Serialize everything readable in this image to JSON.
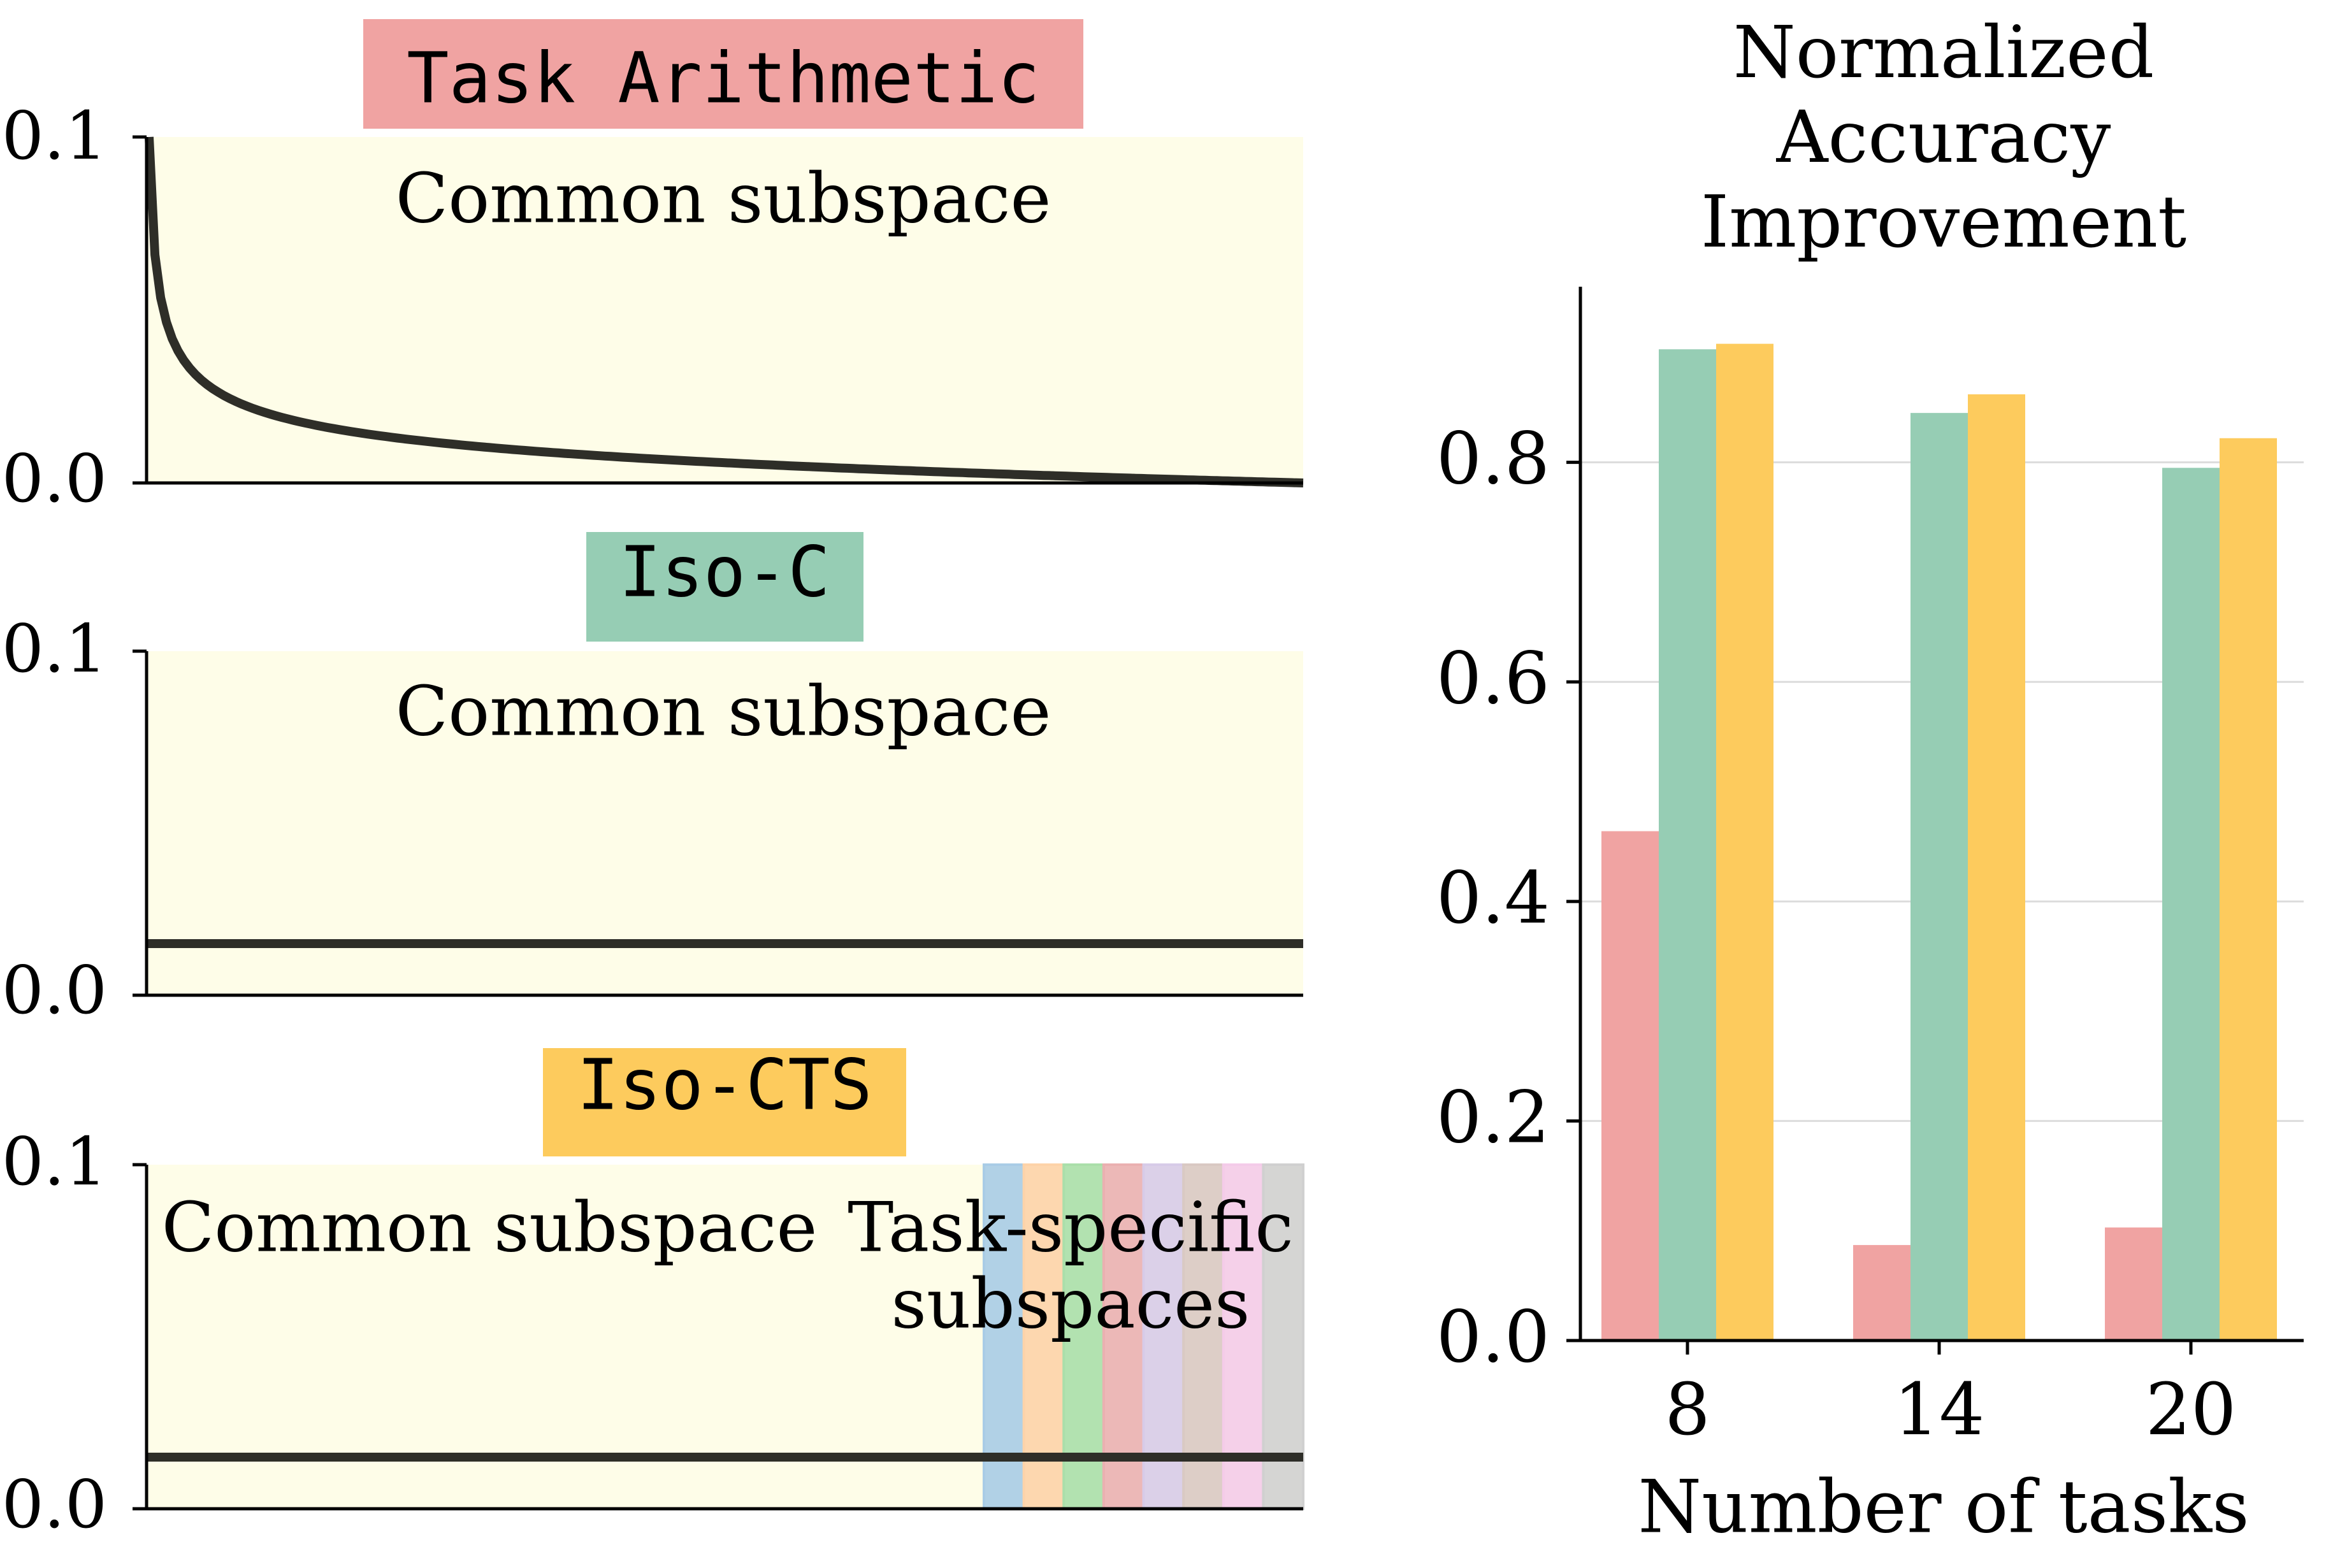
{
  "left_panels": [
    {
      "title": "Task Arithmetic",
      "title_color": "#f0a3a2",
      "ytick_labels": [
        "0.1",
        "0.0"
      ],
      "ylim": [
        0.0,
        0.1
      ],
      "common_label": "Common subspace",
      "curve": "decay",
      "curve_max": 0.1,
      "curve_min": 0.0
    },
    {
      "title": "Iso-C",
      "title_color": "#96cdb4",
      "ytick_labels": [
        "0.1",
        "0.0"
      ],
      "ylim": [
        0.0,
        0.1
      ],
      "common_label": "Common subspace",
      "curve": "flat",
      "flat_value": 0.015
    },
    {
      "title": "Iso-CTS",
      "title_color": "#fdcb5d",
      "ytick_labels": [
        "0.1",
        "0.0"
      ],
      "ylim": [
        0.0,
        0.1
      ],
      "common_label": "Common subspace",
      "task_label_line1": "Task-specific",
      "task_label_line2": "subspaces",
      "curve": "flat",
      "flat_value": 0.015,
      "common_fraction": 0.6,
      "task_colors": [
        "#a9cce6",
        "#fdd3a9",
        "#aadfaa",
        "#eab0b1",
        "#d7cbe8",
        "#d9c9c3",
        "#f4cbe9",
        "#d0d0d0"
      ]
    }
  ],
  "bg_color": "#fefde8",
  "chart_data": {
    "type": "bar",
    "title": "Normalized Accuracy Improvement",
    "title_lines": [
      "Normalized",
      "Accuracy",
      "Improvement"
    ],
    "xlabel": "Number of tasks",
    "ylabel": "",
    "categories": [
      "8",
      "14",
      "20"
    ],
    "ylim": [
      0.0,
      0.96
    ],
    "yticks": [
      0.0,
      0.2,
      0.4,
      0.6,
      0.8
    ],
    "ytick_labels": [
      "0.0",
      "0.2",
      "0.4",
      "0.6",
      "0.8"
    ],
    "grid": "horizontal",
    "series": [
      {
        "color": "#f0a3a2",
        "values": [
          0.464,
          0.087,
          0.103
        ]
      },
      {
        "color": "#96cdb4",
        "values": [
          0.903,
          0.845,
          0.795
        ]
      },
      {
        "color": "#fdcb5d",
        "values": [
          0.908,
          0.862,
          0.822
        ]
      }
    ]
  }
}
